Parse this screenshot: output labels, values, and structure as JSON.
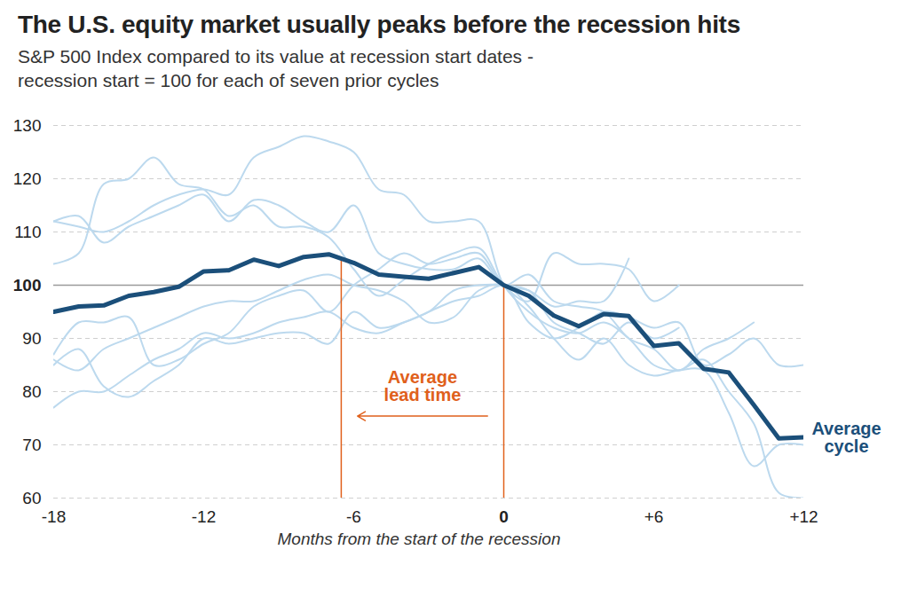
{
  "chart_data": {
    "type": "line",
    "title": "The U.S. equity market usually peaks before the recession hits",
    "subtitle": "S&P 500 Index compared to its value at recession start dates -\nrecession start = 100 for each of seven prior cycles",
    "x_label": "Months from the start of the recession",
    "x": [
      -18,
      -17,
      -16,
      -15,
      -14,
      -13,
      -12,
      -11,
      -10,
      -9,
      -8,
      -7,
      -6,
      -5,
      -4,
      -3,
      -2,
      -1,
      0,
      1,
      2,
      3,
      4,
      5,
      6,
      7,
      8,
      9,
      10,
      11,
      12
    ],
    "series": [
      {
        "color": "#bcd9ee",
        "values": [
          112,
          111,
          110,
          112,
          115,
          117,
          118,
          117,
          124,
          126,
          128,
          127,
          125,
          118,
          117,
          112,
          112,
          112,
          100,
          95,
          92,
          91,
          93,
          90,
          85,
          84,
          86,
          80,
          74,
          61,
          60
        ]
      },
      {
        "color": "#bcd9ee",
        "values": [
          104,
          106,
          119,
          120,
          124,
          119,
          118,
          113,
          115,
          111,
          111,
          109,
          103,
          98,
          101,
          104,
          106,
          107,
          100,
          97,
          106,
          104,
          104,
          103,
          97,
          100,
          null,
          null,
          null,
          null,
          null
        ]
      },
      {
        "color": "#bcd9ee",
        "values": [
          112,
          113,
          108,
          111,
          113,
          115,
          117,
          112,
          116,
          115,
          112,
          110,
          115,
          106,
          104,
          103,
          103,
          105,
          100,
          102,
          97,
          96,
          95,
          90,
          88,
          84,
          88,
          90,
          93,
          null,
          null
        ]
      },
      {
        "color": "#bcd9ee",
        "values": [
          87,
          93,
          93,
          94,
          85,
          86,
          89,
          91,
          96,
          98,
          99,
          95,
          100,
          103,
          106,
          104,
          105,
          106,
          100,
          99,
          96,
          97,
          97,
          105,
          null,
          null,
          null,
          null,
          null,
          null,
          null
        ]
      },
      {
        "color": "#bcd9ee",
        "values": [
          86,
          84,
          88,
          90,
          92,
          94,
          96,
          97,
          97,
          99,
          101,
          102,
          100,
          99,
          97,
          93,
          94,
          99,
          100,
          93,
          90,
          92,
          95,
          94,
          92,
          93,
          85,
          87,
          90,
          85,
          85
        ]
      },
      {
        "color": "#bcd9ee",
        "values": [
          85,
          88,
          81,
          79,
          82,
          85,
          90,
          89,
          90,
          91,
          91,
          89,
          95,
          92,
          93,
          95,
          97,
          98,
          100,
          96,
          90,
          86,
          90,
          85,
          83,
          84,
          84,
          76,
          66,
          70,
          70
        ]
      },
      {
        "color": "#bcd9ee",
        "values": [
          77,
          80,
          80,
          83,
          86,
          88,
          91,
          90,
          91,
          93,
          94,
          95,
          92,
          91,
          93,
          95,
          99,
          100,
          100,
          99,
          93,
          91,
          89,
          93,
          90,
          92,
          null,
          null,
          null,
          null,
          null
        ]
      },
      {
        "name": "Average cycle",
        "color": "#1b4f7a",
        "values": [
          95,
          96,
          96.2,
          98,
          98.7,
          99.7,
          102.6,
          102.8,
          104.8,
          103.6,
          105.3,
          105.8,
          104.2,
          102,
          101.6,
          101.2,
          102.3,
          103.4,
          100,
          98,
          94.3,
          92.3,
          94.6,
          94.2,
          88.6,
          89.1,
          84.3,
          83.6,
          77.5,
          71.2,
          71.4
        ]
      }
    ],
    "xlim": [
      -18,
      12
    ],
    "xticks": [
      -18,
      -12,
      -6,
      0,
      {
        "value": 6,
        "label": "+6"
      },
      {
        "value": 12,
        "label": "+12"
      }
    ],
    "ylim": [
      60,
      130
    ],
    "yticks": [
      60,
      70,
      80,
      90,
      100,
      110,
      120,
      130
    ],
    "grid": true,
    "reference_y": 100,
    "annotations": [
      {
        "text": "Average lead time",
        "x_from": 0,
        "x_to": -6.5,
        "color": "#e0601b"
      }
    ]
  }
}
